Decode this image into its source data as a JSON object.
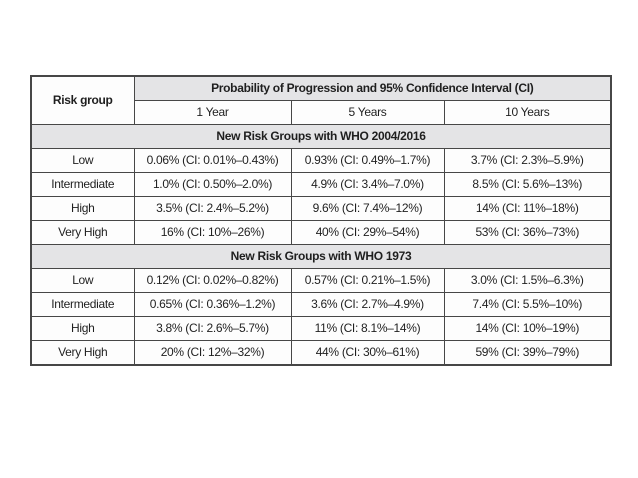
{
  "table": {
    "header": {
      "risk_group": "Risk group",
      "probability": "Probability of Progression and 95% Confidence Interval (CI)",
      "years": [
        "1 Year",
        "5 Years",
        "10 Years"
      ]
    },
    "sections": [
      {
        "header": "New Risk Groups with WHO 2004/2016",
        "rows": [
          {
            "risk": "Low",
            "y1": "0.06% (CI: 0.01%–0.43%)",
            "y5": "0.93% (CI: 0.49%–1.7%)",
            "y10": "3.7% (CI: 2.3%–5.9%)"
          },
          {
            "risk": "Intermediate",
            "y1": "1.0% (CI: 0.50%–2.0%)",
            "y5": "4.9% (CI: 3.4%–7.0%)",
            "y10": "8.5% (CI: 5.6%–13%)"
          },
          {
            "risk": "High",
            "y1": "3.5% (CI: 2.4%–5.2%)",
            "y5": "9.6% (CI: 7.4%–12%)",
            "y10": "14% (CI: 11%–18%)"
          },
          {
            "risk": "Very High",
            "y1": "16% (CI: 10%–26%)",
            "y5": "40% (CI: 29%–54%)",
            "y10": "53% (CI: 36%–73%)"
          }
        ]
      },
      {
        "header": "New Risk Groups with WHO 1973",
        "rows": [
          {
            "risk": "Low",
            "y1": "0.12% (CI: 0.02%–0.82%)",
            "y5": "0.57% (CI: 0.21%–1.5%)",
            "y10": "3.0% (CI: 1.5%–6.3%)"
          },
          {
            "risk": "Intermediate",
            "y1": "0.65% (CI: 0.36%–1.2%)",
            "y5": "3.6% (CI: 2.7%–4.9%)",
            "y10": "7.4% (CI: 5.5%–10%)"
          },
          {
            "risk": "High",
            "y1": "3.8% (CI: 2.6%–5.7%)",
            "y5": "11% (CI: 8.1%–14%)",
            "y10": "14% (CI: 10%–19%)"
          },
          {
            "risk": "Very High",
            "y1": "20% (CI: 12%–32%)",
            "y5": "44% (CI: 30%–61%)",
            "y10": "59% (CI: 39%–79%)"
          }
        ]
      }
    ],
    "colors": {
      "header_bg": "#e4e4e6",
      "border": "#474747",
      "text": "#1f1f1f",
      "page_bg": "#ffffff"
    }
  }
}
